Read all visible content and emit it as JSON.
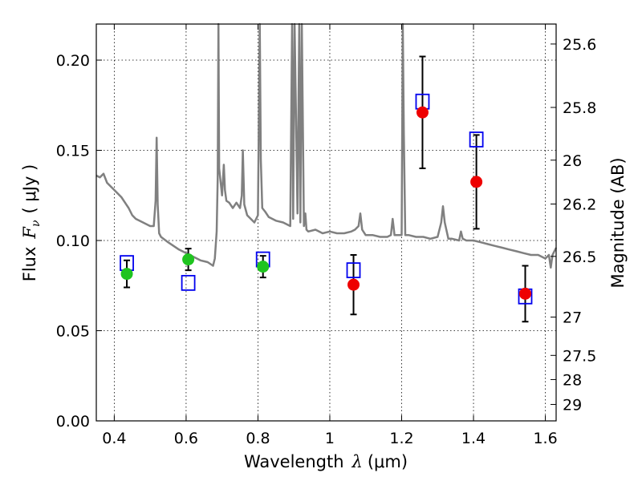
{
  "chart_data": {
    "type": "scatter",
    "xlabel_text": "Wavelength",
    "xlabel_symbol": "λ",
    "xlabel_unit": "(μm)",
    "ylabel_text": "Flux",
    "ylabel_symbol": "F",
    "ylabel_sub": "ν",
    "ylabel_unit": "( μJy )",
    "y2label": "Magnitude (AB)",
    "xlim": [
      0.35,
      1.63
    ],
    "ylim": [
      0.0,
      0.22
    ],
    "xticks": [
      {
        "v": 0.4,
        "label": "0.4"
      },
      {
        "v": 0.6,
        "label": "0.6"
      },
      {
        "v": 0.8,
        "label": "0.8"
      },
      {
        "v": 1.0,
        "label": "1"
      },
      {
        "v": 1.2,
        "label": "1.2"
      },
      {
        "v": 1.4,
        "label": "1.4"
      },
      {
        "v": 1.6,
        "label": "1.6"
      }
    ],
    "yticks": [
      {
        "v": 0.0,
        "label": "0.00"
      },
      {
        "v": 0.05,
        "label": "0.05"
      },
      {
        "v": 0.1,
        "label": "0.10"
      },
      {
        "v": 0.15,
        "label": "0.15"
      },
      {
        "v": 0.2,
        "label": "0.20"
      }
    ],
    "mag_ticks": [
      {
        "mag": 25.6,
        "label": "25.6"
      },
      {
        "mag": 25.8,
        "label": "25.8"
      },
      {
        "mag": 26.0,
        "label": "26"
      },
      {
        "mag": 26.2,
        "label": "26.2"
      },
      {
        "mag": 26.5,
        "label": "26.5"
      },
      {
        "mag": 27.0,
        "label": "27"
      },
      {
        "mag": 27.5,
        "label": "27.5"
      },
      {
        "mag": 28.0,
        "label": "28"
      },
      {
        "mag": 29.0,
        "label": "29"
      }
    ],
    "grid": true,
    "colors": {
      "optical": "#1fc41f",
      "nir": "#ee0000",
      "model": "#0000ee",
      "spectrum": "#808080",
      "errorbar": "#000000"
    },
    "series": [
      {
        "kind": "photometry-optical",
        "points": [
          {
            "x": 0.435,
            "y": 0.0815,
            "err": 0.0075
          },
          {
            "x": 0.606,
            "y": 0.0895,
            "err": 0.006
          },
          {
            "x": 0.814,
            "y": 0.0855,
            "err": 0.006
          }
        ]
      },
      {
        "kind": "photometry-nir",
        "points": [
          {
            "x": 1.066,
            "y": 0.0755,
            "err": 0.0165
          },
          {
            "x": 1.258,
            "y": 0.171,
            "err": 0.031
          },
          {
            "x": 1.408,
            "y": 0.1325,
            "err": 0.026
          },
          {
            "x": 1.544,
            "y": 0.0705,
            "err": 0.0155
          }
        ]
      },
      {
        "kind": "model-bandpass",
        "points": [
          {
            "x": 0.435,
            "y": 0.0875
          },
          {
            "x": 0.606,
            "y": 0.0765
          },
          {
            "x": 0.814,
            "y": 0.0895
          },
          {
            "x": 1.066,
            "y": 0.0835
          },
          {
            "x": 1.258,
            "y": 0.177
          },
          {
            "x": 1.408,
            "y": 0.156
          },
          {
            "x": 1.544,
            "y": 0.069
          }
        ]
      },
      {
        "kind": "model-spectrum",
        "x": [
          0.35,
          0.36,
          0.37,
          0.38,
          0.39,
          0.4,
          0.42,
          0.44,
          0.45,
          0.46,
          0.48,
          0.5,
          0.51,
          0.515,
          0.518,
          0.521,
          0.525,
          0.53,
          0.55,
          0.58,
          0.6,
          0.62,
          0.64,
          0.66,
          0.675,
          0.68,
          0.685,
          0.688,
          0.69,
          0.692,
          0.7,
          0.705,
          0.708,
          0.712,
          0.72,
          0.73,
          0.74,
          0.75,
          0.755,
          0.758,
          0.762,
          0.77,
          0.78,
          0.79,
          0.8,
          0.805,
          0.808,
          0.812,
          0.82,
          0.83,
          0.85,
          0.87,
          0.89,
          0.895,
          0.898,
          0.902,
          0.91,
          0.915,
          0.918,
          0.922,
          0.928,
          0.932,
          0.935,
          0.94,
          0.96,
          0.98,
          1.0,
          1.02,
          1.04,
          1.06,
          1.07,
          1.08,
          1.085,
          1.09,
          1.1,
          1.12,
          1.14,
          1.16,
          1.17,
          1.175,
          1.18,
          1.19,
          1.2,
          1.203,
          1.206,
          1.21,
          1.22,
          1.24,
          1.26,
          1.28,
          1.3,
          1.31,
          1.315,
          1.32,
          1.33,
          1.34,
          1.36,
          1.365,
          1.37,
          1.38,
          1.4,
          1.42,
          1.44,
          1.46,
          1.48,
          1.5,
          1.52,
          1.54,
          1.56,
          1.58,
          1.6,
          1.61,
          1.615,
          1.62,
          1.63
        ],
        "y": [
          0.136,
          0.135,
          0.137,
          0.132,
          0.13,
          0.128,
          0.124,
          0.118,
          0.114,
          0.112,
          0.11,
          0.108,
          0.108,
          0.122,
          0.157,
          0.12,
          0.104,
          0.102,
          0.099,
          0.095,
          0.093,
          0.091,
          0.089,
          0.088,
          0.086,
          0.09,
          0.105,
          0.135,
          0.22,
          0.14,
          0.125,
          0.142,
          0.128,
          0.122,
          0.121,
          0.118,
          0.121,
          0.118,
          0.125,
          0.15,
          0.12,
          0.114,
          0.112,
          0.11,
          0.114,
          0.22,
          0.145,
          0.118,
          0.116,
          0.113,
          0.111,
          0.11,
          0.108,
          0.22,
          0.112,
          0.22,
          0.115,
          0.22,
          0.11,
          0.22,
          0.108,
          0.115,
          0.106,
          0.105,
          0.106,
          0.104,
          0.105,
          0.104,
          0.104,
          0.105,
          0.106,
          0.108,
          0.115,
          0.106,
          0.103,
          0.103,
          0.102,
          0.102,
          0.103,
          0.112,
          0.103,
          0.103,
          0.103,
          0.22,
          0.16,
          0.103,
          0.103,
          0.102,
          0.102,
          0.101,
          0.102,
          0.11,
          0.119,
          0.11,
          0.101,
          0.101,
          0.1,
          0.105,
          0.101,
          0.1,
          0.1,
          0.099,
          0.098,
          0.097,
          0.096,
          0.095,
          0.094,
          0.093,
          0.092,
          0.092,
          0.09,
          0.092,
          0.085,
          0.092,
          0.096
        ]
      }
    ]
  }
}
